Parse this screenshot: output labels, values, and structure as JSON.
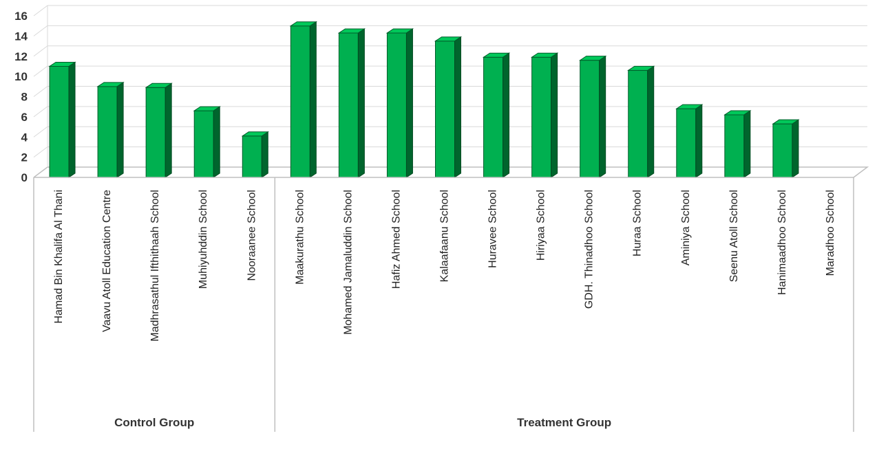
{
  "chart_data": {
    "type": "bar",
    "style": "3d-column",
    "color": "#00b050",
    "categories": [
      "Hamad Bin Khalifa Al Thani",
      "Vaavu Atoll Education Centre",
      "Madhrasathul Ifthithaah School",
      "Muhiyuhddin School",
      "Nooraanee School",
      "Maakurathu School",
      "Mohamed Jamaluddin School",
      "Hafiz Ahmed School",
      "Kalaafaanu School",
      "Huravee School",
      "Hiriyaa School",
      "GDH. Thinadhoo School",
      "Huraa School",
      "Aminiya School",
      "Seenu Atoll School",
      "Hanimaadhoo School",
      "Maradhoo School"
    ],
    "values": [
      11,
      9,
      8.9,
      6.6,
      4.1,
      15,
      14.3,
      14.3,
      13.5,
      11.9,
      11.9,
      11.6,
      10.6,
      6.8,
      6.2,
      5.3,
      0
    ],
    "groups": [
      {
        "label": "Control Group",
        "count": 5
      },
      {
        "label": "Treatment Group",
        "count": 12
      }
    ],
    "ylim": [
      0,
      16
    ],
    "yticks": [
      "0",
      "2",
      "4",
      "6",
      "8",
      "10",
      "12",
      "14",
      "16"
    ],
    "grid": true,
    "legend": "none",
    "title": "",
    "xlabel": "",
    "ylabel": ""
  }
}
